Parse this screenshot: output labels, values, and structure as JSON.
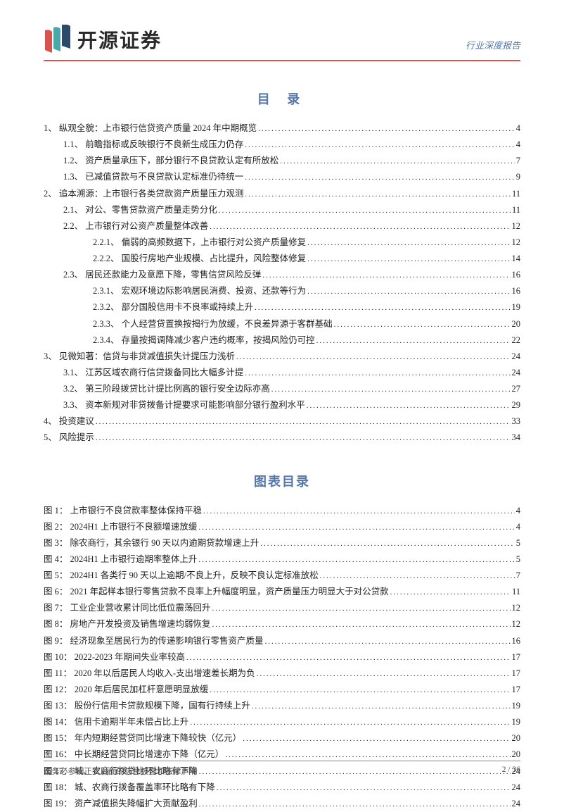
{
  "header": {
    "company_name": "开源证券",
    "report_type": "行业深度报告",
    "logo": {
      "colors": {
        "red": "#d9534f",
        "teal": "#4aa8a8",
        "navy": "#2c4a6b"
      }
    },
    "divider_color": "#d9534f"
  },
  "toc": {
    "title": "目  录",
    "title_color": "#5577aa",
    "title_fontsize": 18,
    "entries": [
      {
        "num": "1、",
        "text": "纵观全貌：上市银行信贷资产质量 2024 年中期概览",
        "page": "4",
        "indent": 0
      },
      {
        "num": "1.1、",
        "text": "前瞻指标或反映银行不良新生成压力仍存",
        "page": "4",
        "indent": 1
      },
      {
        "num": "1.2、",
        "text": "资产质量承压下，部分银行不良贷款认定有所放松",
        "page": "7",
        "indent": 1
      },
      {
        "num": "1.3、",
        "text": "已减值贷款与不良贷款认定标准仍待统一",
        "page": "9",
        "indent": 1
      },
      {
        "num": "2、",
        "text": "追本溯源：上市银行各类贷款资产质量压力观测",
        "page": "11",
        "indent": 0
      },
      {
        "num": "2.1、",
        "text": "对公、零售贷款资产质量走势分化",
        "page": "11",
        "indent": 1
      },
      {
        "num": "2.2、",
        "text": "上市银行对公资产质量整体改善",
        "page": "12",
        "indent": 1
      },
      {
        "num": "2.2.1、",
        "text": "偏弱的高频数据下，上市银行对公资产质量修复",
        "page": "12",
        "indent": 2
      },
      {
        "num": "2.2.2、",
        "text": "国股行房地产业规模、占比提升，风险整体修复",
        "page": "14",
        "indent": 2
      },
      {
        "num": "2.3、",
        "text": "居民还款能力及意愿下降，零售信贷风险反弹",
        "page": "16",
        "indent": 1
      },
      {
        "num": "2.3.1、",
        "text": "宏观环境边际影响居民消费、投资、还款等行为",
        "page": "16",
        "indent": 2
      },
      {
        "num": "2.3.2、",
        "text": "部分国股信用卡不良率或持续上升",
        "page": "19",
        "indent": 2
      },
      {
        "num": "2.3.3、",
        "text": "个人经营贷置换按揭行为放缓，不良差异源于客群基础",
        "page": "20",
        "indent": 2
      },
      {
        "num": "2.3.4、",
        "text": "存量按揭调降减少客户违约概率，按揭风险仍可控",
        "page": "22",
        "indent": 2
      },
      {
        "num": "3、",
        "text": "见微知著：信贷与非贷减值损失计提压力浅析",
        "page": "24",
        "indent": 0
      },
      {
        "num": "3.1、",
        "text": "江苏区域农商行信贷拨备同比大幅多计提",
        "page": "24",
        "indent": 1
      },
      {
        "num": "3.2、",
        "text": "第三阶段拨贷比计提比例高的银行安全边际亦高",
        "page": "27",
        "indent": 1
      },
      {
        "num": "3.3、",
        "text": "资本新规对非贷拨备计提要求可能影响部分银行盈利水平",
        "page": "29",
        "indent": 1
      },
      {
        "num": "4、",
        "text": "投资建议",
        "page": "33",
        "indent": 0
      },
      {
        "num": "5、",
        "text": "风险提示",
        "page": "34",
        "indent": 0
      }
    ]
  },
  "figlist": {
    "title": "图表目录",
    "entries": [
      {
        "num": "图 1：",
        "text": "上市银行不良贷款率整体保持平稳",
        "page": "4"
      },
      {
        "num": "图 2：",
        "text": "2024H1 上市银行不良额增速放缓",
        "page": "4"
      },
      {
        "num": "图 3：",
        "text": "除农商行，其余银行 90 天以内逾期贷款增速上升",
        "page": "5"
      },
      {
        "num": "图 4：",
        "text": "2024H1 上市银行逾期率整体上升",
        "page": "5"
      },
      {
        "num": "图 5：",
        "text": "2024H1 各类行 90 天以上逾期/不良上升，反映不良认定标准放松",
        "page": "7"
      },
      {
        "num": "图 6：",
        "text": "2021 年起样本银行零售贷款不良率上升幅度明显，资产质量压力明显大于对公贷款",
        "page": "11"
      },
      {
        "num": "图 7：",
        "text": "工业企业营收累计同比低位震荡回升",
        "page": "12"
      },
      {
        "num": "图 8：",
        "text": "房地产开发投资及销售增速均弱恢复",
        "page": "12"
      },
      {
        "num": "图 9：",
        "text": "经济现象至居民行为的传递影响银行零售资产质量",
        "page": "16"
      },
      {
        "num": "图 10：",
        "text": "2022-2023 年期间失业率较高",
        "page": "17"
      },
      {
        "num": "图 11：",
        "text": "2020 年以后居民人均收入-支出增速差长期为负",
        "page": "17"
      },
      {
        "num": "图 12：",
        "text": "2020 年后居民加杠杆意愿明显放缓",
        "page": "17"
      },
      {
        "num": "图 13：",
        "text": "股份行信用卡贷款规模下降，国有行持续上升",
        "page": "19"
      },
      {
        "num": "图 14：",
        "text": "信用卡逾期半年未偿占比上升",
        "page": "19"
      },
      {
        "num": "图 15：",
        "text": "年内短期经营贷同比增速下降较快（亿元）",
        "page": "20"
      },
      {
        "num": "图 16：",
        "text": "中长期经营贷同比增速亦下降（亿元）",
        "page": "20"
      },
      {
        "num": "图 17：",
        "text": "城、农商行拨贷比环比略有下降",
        "page": "24"
      },
      {
        "num": "图 18：",
        "text": "城、农商行拨备覆盖率环比略有下降",
        "page": "24"
      },
      {
        "num": "图 19：",
        "text": "资产减值损失降幅扩大贡献盈利",
        "page": "24"
      }
    ]
  },
  "footer": {
    "left": "请务必参阅正文后面的信息披露和法律声明",
    "right": "2 / 36"
  },
  "styles": {
    "body_width": 802,
    "body_height": 1133,
    "text_color": "#222",
    "toc_fontsize": 12.5,
    "toc_lineheight": 1.85
  }
}
